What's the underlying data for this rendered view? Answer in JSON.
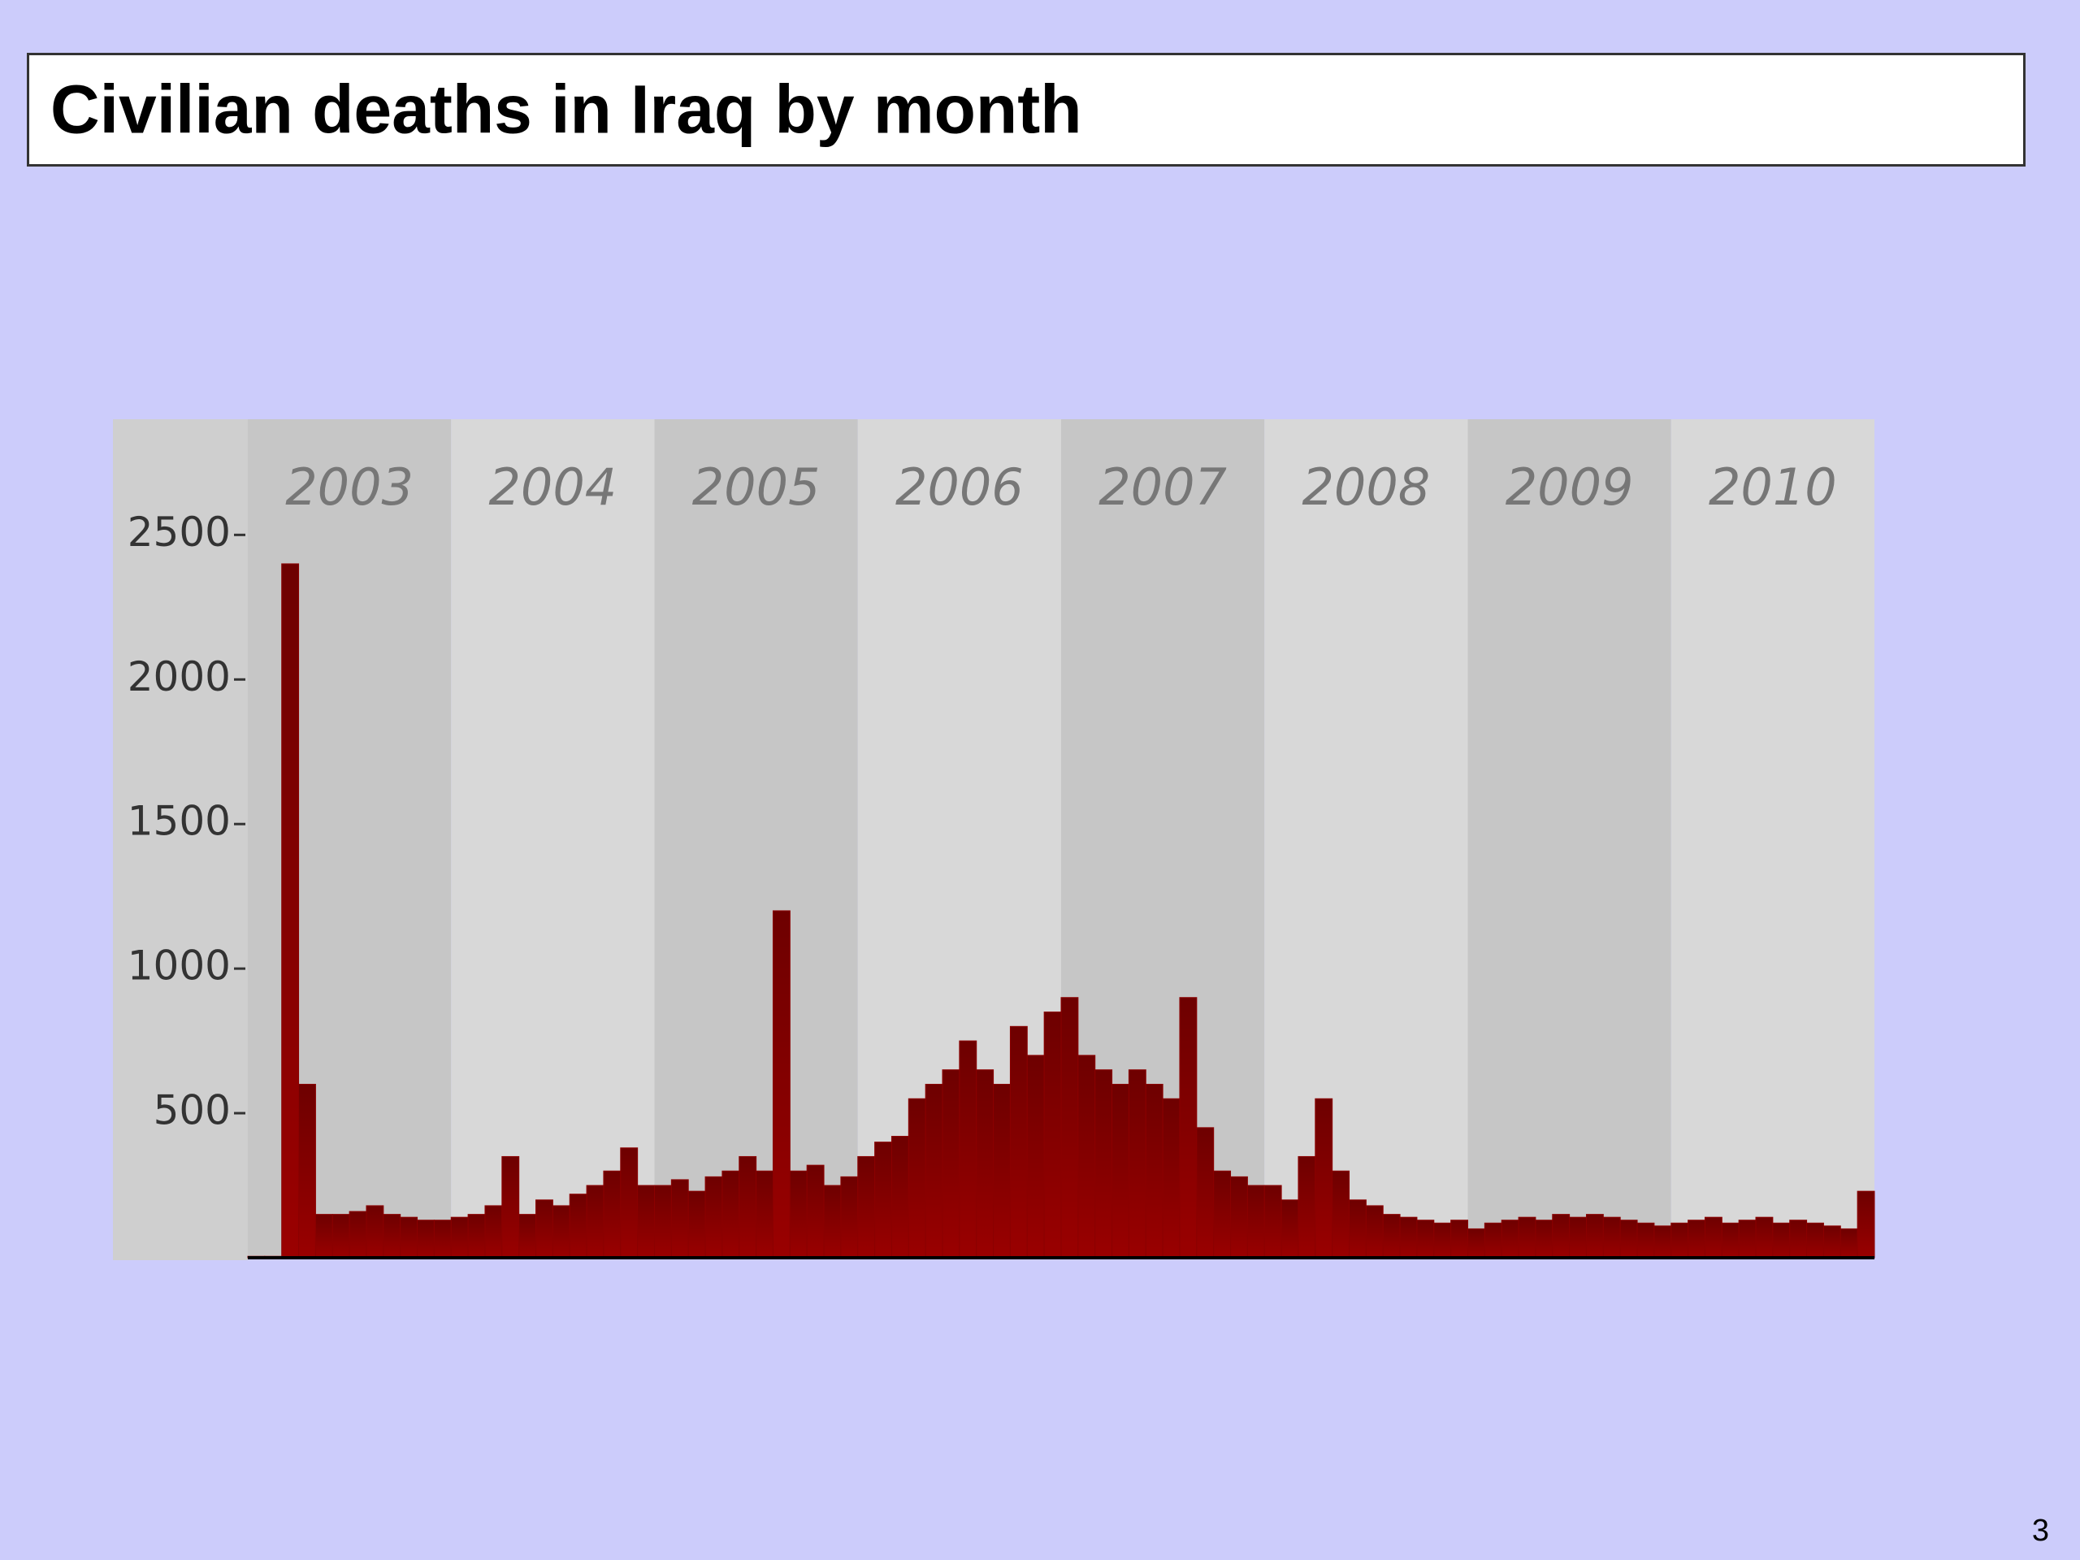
{
  "title": "Civilian deaths in Iraq by month",
  "page_number": "3",
  "chart_data": {
    "type": "bar",
    "year_bands": [
      "2003",
      "2004",
      "2005",
      "2006",
      "2007",
      "2008",
      "2009",
      "2010"
    ],
    "values": [
      5,
      5,
      2400,
      600,
      150,
      150,
      160,
      180,
      150,
      140,
      130,
      130,
      140,
      150,
      180,
      350,
      150,
      200,
      180,
      220,
      250,
      300,
      380,
      250,
      250,
      270,
      230,
      280,
      300,
      350,
      300,
      1200,
      300,
      320,
      250,
      280,
      350,
      400,
      420,
      550,
      600,
      650,
      750,
      650,
      600,
      800,
      700,
      850,
      900,
      700,
      650,
      600,
      650,
      600,
      550,
      900,
      450,
      300,
      280,
      250,
      250,
      200,
      350,
      550,
      300,
      200,
      180,
      150,
      140,
      130,
      120,
      130,
      100,
      120,
      130,
      140,
      130,
      150,
      140,
      150,
      140,
      130,
      120,
      110,
      120,
      130,
      140,
      120,
      130,
      140,
      120,
      130,
      120,
      110,
      100,
      230
    ],
    "color": "#8b0000",
    "ylim": [
      0,
      2900
    ],
    "yticks": [
      500,
      1000,
      1500,
      2000,
      2500
    ]
  }
}
